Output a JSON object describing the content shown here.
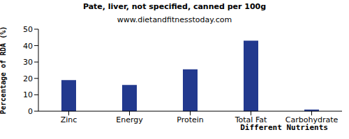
{
  "chart_data": {
    "type": "bar",
    "title": "Pate, liver, not specified, canned per 100g",
    "subtitle": "www.dietandfitnesstoday.com",
    "x_label": "Different Nutrients",
    "y_label": "Percentage of RDA (%)",
    "categories": [
      "Zinc",
      "Energy",
      "Protein",
      "Total Fat",
      "Carbohydrate"
    ],
    "values": [
      19,
      16,
      25.5,
      43,
      1
    ],
    "color": "#22398e",
    "ylim": [
      0,
      50
    ],
    "yticks": [
      0,
      10,
      20,
      30,
      40,
      50
    ],
    "grid": false
  }
}
